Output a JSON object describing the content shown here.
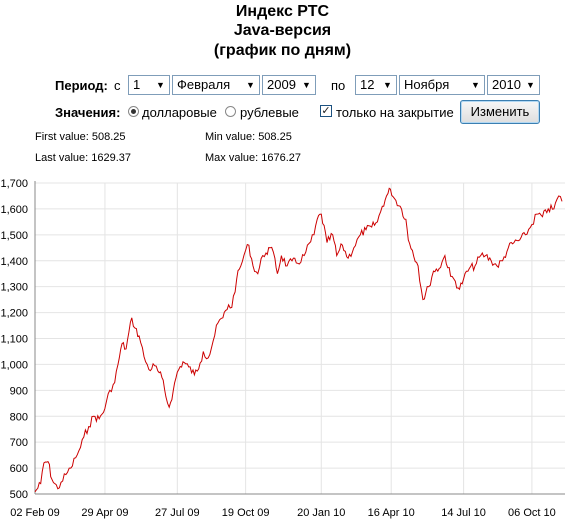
{
  "header": {
    "title": "Индекс РТС",
    "subtitle": "Java-версия",
    "caption": "(график по дням)"
  },
  "period": {
    "label": "Период:",
    "from_prefix": "с",
    "from_day": "1",
    "from_month": "Февраля",
    "from_year": "2009",
    "to_prefix": "по",
    "to_day": "12",
    "to_month": "Ноября",
    "to_year": "2010"
  },
  "values": {
    "label": "Значения:",
    "option_dollar": "долларовые",
    "option_ruble": "рублевые",
    "selected": "долларовые",
    "close_only_label": "только на закрытие",
    "close_only_checked": true,
    "change_button": "Изменить"
  },
  "stats": {
    "first": "First value: 508.25",
    "last": "Last value: 1629.37",
    "min": "Min value: 508.25",
    "max": "Max value: 1676.27"
  },
  "chart_data": {
    "type": "line",
    "title": "",
    "xlabel": "",
    "ylabel": "",
    "ylim": [
      500,
      1700
    ],
    "y_ticks": [
      "1,700",
      "1,600",
      "1,500",
      "1,400",
      "1,300",
      "1,200",
      "1,100",
      "1,000",
      "900",
      "800",
      "700",
      "600",
      "500"
    ],
    "x_ticks": [
      "02 Feb 09",
      "29 Apr 09",
      "27 Jul 09",
      "19 Oct 09",
      "20 Jan 10",
      "16 Apr 10",
      "14 Jul 10",
      "06 Oct 10"
    ],
    "grid": true,
    "line_color": "#cc0000",
    "series": [
      {
        "values": [
          [
            "2009-02-02",
            508
          ],
          [
            "2009-02-09",
            540
          ],
          [
            "2009-02-13",
            620
          ],
          [
            "2009-02-18",
            625
          ],
          [
            "2009-02-23",
            555
          ],
          [
            "2009-03-02",
            520
          ],
          [
            "2009-03-06",
            545
          ],
          [
            "2009-03-12",
            575
          ],
          [
            "2009-03-18",
            600
          ],
          [
            "2009-03-24",
            640
          ],
          [
            "2009-03-30",
            680
          ],
          [
            "2009-04-03",
            720
          ],
          [
            "2009-04-09",
            760
          ],
          [
            "2009-04-15",
            800
          ],
          [
            "2009-04-22",
            790
          ],
          [
            "2009-04-29",
            830
          ],
          [
            "2009-05-05",
            900
          ],
          [
            "2009-05-11",
            930
          ],
          [
            "2009-05-15",
            1000
          ],
          [
            "2009-05-20",
            1080
          ],
          [
            "2009-05-25",
            1060
          ],
          [
            "2009-06-01",
            1180
          ],
          [
            "2009-06-05",
            1140
          ],
          [
            "2009-06-10",
            1110
          ],
          [
            "2009-06-16",
            1030
          ],
          [
            "2009-06-22",
            980
          ],
          [
            "2009-06-29",
            995
          ],
          [
            "2009-07-03",
            975
          ],
          [
            "2009-07-08",
            950
          ],
          [
            "2009-07-13",
            875
          ],
          [
            "2009-07-17",
            835
          ],
          [
            "2009-07-22",
            900
          ],
          [
            "2009-07-27",
            970
          ],
          [
            "2009-08-03",
            1010
          ],
          [
            "2009-08-10",
            990
          ],
          [
            "2009-08-17",
            960
          ],
          [
            "2009-08-24",
            1005
          ],
          [
            "2009-08-28",
            1050
          ],
          [
            "2009-09-03",
            1025
          ],
          [
            "2009-09-09",
            1090
          ],
          [
            "2009-09-15",
            1160
          ],
          [
            "2009-09-21",
            1180
          ],
          [
            "2009-09-28",
            1230
          ],
          [
            "2009-10-02",
            1220
          ],
          [
            "2009-10-08",
            1330
          ],
          [
            "2009-10-13",
            1380
          ],
          [
            "2009-10-19",
            1440
          ],
          [
            "2009-10-23",
            1460
          ],
          [
            "2009-10-28",
            1380
          ],
          [
            "2009-11-03",
            1350
          ],
          [
            "2009-11-09",
            1420
          ],
          [
            "2009-11-13",
            1430
          ],
          [
            "2009-11-18",
            1450
          ],
          [
            "2009-11-24",
            1410
          ],
          [
            "2009-11-27",
            1350
          ],
          [
            "2009-12-02",
            1420
          ],
          [
            "2009-12-09",
            1380
          ],
          [
            "2009-12-15",
            1400
          ],
          [
            "2009-12-22",
            1390
          ],
          [
            "2009-12-30",
            1420
          ],
          [
            "2010-01-11",
            1500
          ],
          [
            "2010-01-15",
            1560
          ],
          [
            "2010-01-20",
            1580
          ],
          [
            "2010-01-27",
            1470
          ],
          [
            "2010-02-03",
            1500
          ],
          [
            "2010-02-08",
            1420
          ],
          [
            "2010-02-15",
            1460
          ],
          [
            "2010-02-22",
            1410
          ],
          [
            "2010-03-01",
            1450
          ],
          [
            "2010-03-09",
            1500
          ],
          [
            "2010-03-16",
            1520
          ],
          [
            "2010-03-23",
            1530
          ],
          [
            "2010-03-30",
            1550
          ],
          [
            "2010-04-05",
            1610
          ],
          [
            "2010-04-12",
            1660
          ],
          [
            "2010-04-15",
            1676
          ],
          [
            "2010-04-20",
            1640
          ],
          [
            "2010-04-27",
            1610
          ],
          [
            "2010-05-04",
            1560
          ],
          [
            "2010-05-07",
            1480
          ],
          [
            "2010-05-12",
            1440
          ],
          [
            "2010-05-19",
            1380
          ],
          [
            "2010-05-25",
            1250
          ],
          [
            "2010-06-01",
            1300
          ],
          [
            "2010-06-07",
            1360
          ],
          [
            "2010-06-14",
            1370
          ],
          [
            "2010-06-21",
            1420
          ],
          [
            "2010-06-28",
            1340
          ],
          [
            "2010-07-02",
            1330
          ],
          [
            "2010-07-09",
            1290
          ],
          [
            "2010-07-14",
            1330
          ],
          [
            "2010-07-21",
            1370
          ],
          [
            "2010-07-28",
            1380
          ],
          [
            "2010-08-04",
            1420
          ],
          [
            "2010-08-10",
            1420
          ],
          [
            "2010-08-17",
            1400
          ],
          [
            "2010-08-24",
            1380
          ],
          [
            "2010-08-31",
            1400
          ],
          [
            "2010-09-07",
            1450
          ],
          [
            "2010-09-14",
            1470
          ],
          [
            "2010-09-21",
            1480
          ],
          [
            "2010-09-28",
            1500
          ],
          [
            "2010-10-06",
            1540
          ],
          [
            "2010-10-12",
            1580
          ],
          [
            "2010-10-19",
            1570
          ],
          [
            "2010-10-26",
            1600
          ],
          [
            "2010-11-02",
            1600
          ],
          [
            "2010-11-08",
            1650
          ],
          [
            "2010-11-12",
            1629
          ]
        ]
      }
    ]
  }
}
